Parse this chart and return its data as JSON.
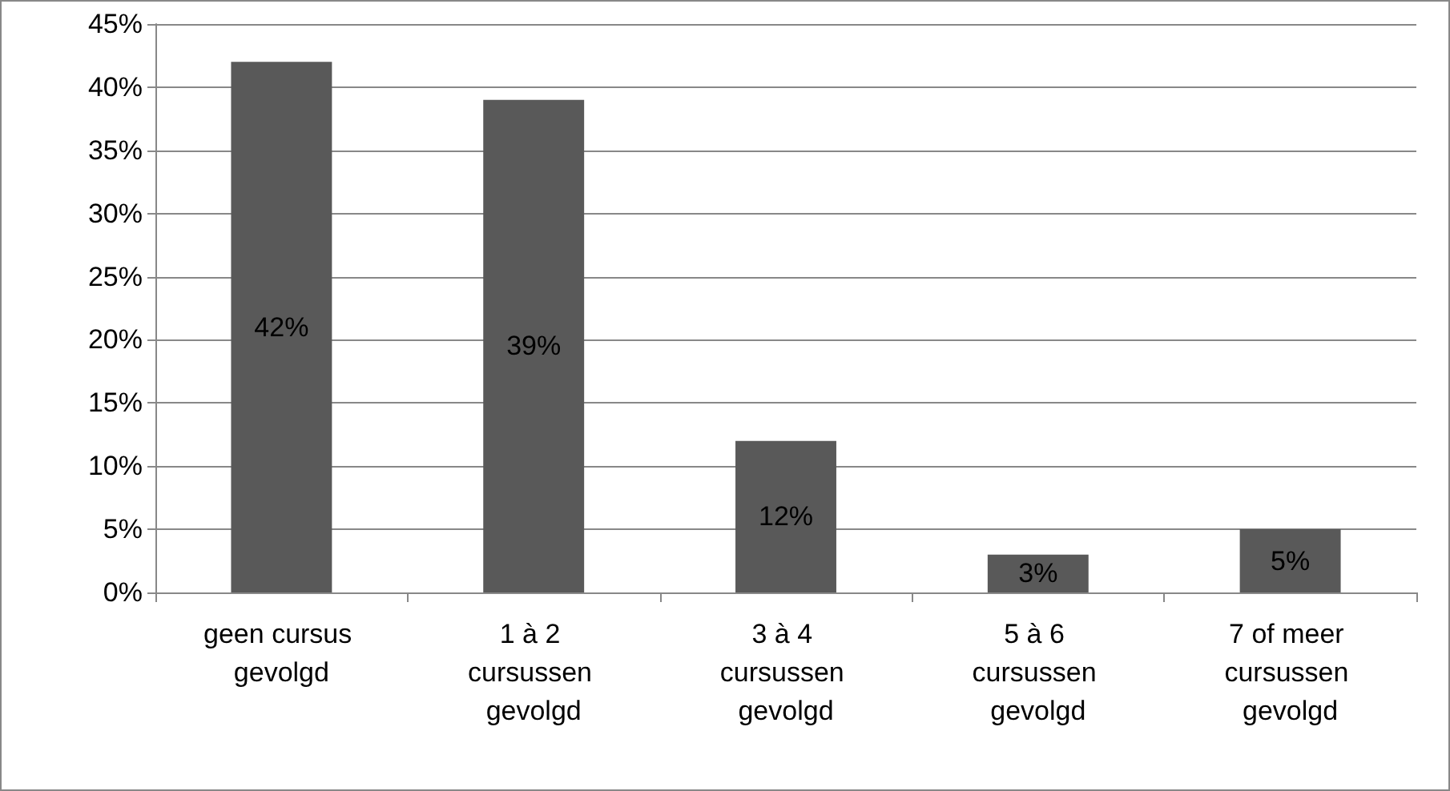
{
  "chart_data": {
    "type": "bar",
    "categories": [
      "geen cursus gevolgd",
      "1 à 2 cursussen gevolgd",
      "3 à 4 cursussen gevolgd",
      "5 à 6 cursussen gevolgd",
      "7 of meer cursussen gevolgd"
    ],
    "values": [
      42,
      39,
      12,
      3,
      5
    ],
    "value_labels": [
      "42%",
      "39%",
      "12%",
      "3%",
      "5%"
    ],
    "color": "#595959",
    "ylim": [
      0,
      45
    ],
    "yticks": [
      {
        "value": 0,
        "label": "0%"
      },
      {
        "value": 5,
        "label": "5%"
      },
      {
        "value": 10,
        "label": "10%"
      },
      {
        "value": 15,
        "label": "15%"
      },
      {
        "value": 20,
        "label": "20%"
      },
      {
        "value": 25,
        "label": "25%"
      },
      {
        "value": 30,
        "label": "30%"
      },
      {
        "value": 35,
        "label": "35%"
      },
      {
        "value": 40,
        "label": "40%"
      },
      {
        "value": 45,
        "label": "45%"
      }
    ],
    "grid": "y"
  }
}
